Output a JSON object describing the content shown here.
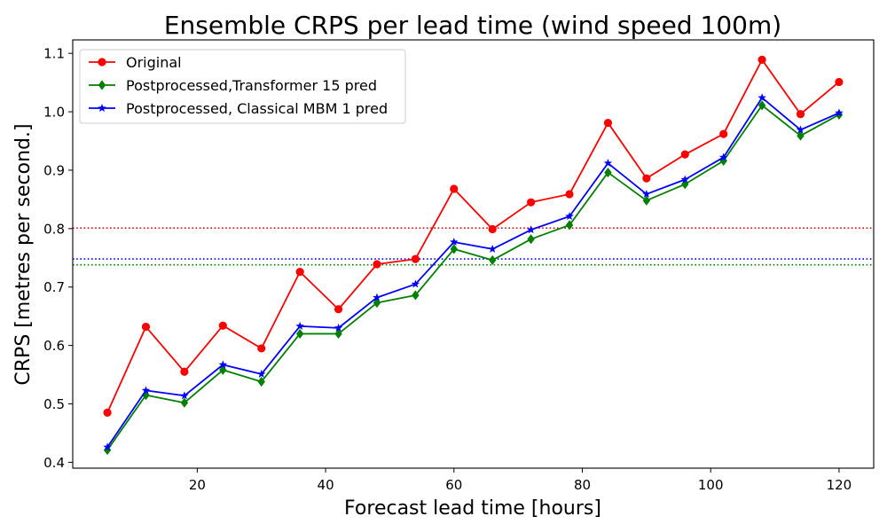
{
  "chart_data": {
    "type": "line",
    "title": "Ensemble CRPS per lead time (wind speed 100m)",
    "xlabel": "Forecast lead time [hours]",
    "ylabel": "CRPS [metres per second.]",
    "xlim": [
      0.6,
      125.4
    ],
    "ylim": [
      0.39,
      1.123
    ],
    "xticks": [
      20,
      40,
      60,
      80,
      100,
      120
    ],
    "yticks": [
      0.4,
      0.5,
      0.6,
      0.7,
      0.8,
      0.9,
      1.0,
      1.1
    ],
    "ytick_labels": [
      "0.4",
      "0.5",
      "0.6",
      "0.7",
      "0.8",
      "0.9",
      "1.0",
      "1.1"
    ],
    "grid": false,
    "legend_position": "upper-left",
    "x": [
      6,
      12,
      18,
      24,
      30,
      36,
      42,
      48,
      54,
      60,
      66,
      72,
      78,
      84,
      90,
      96,
      102,
      108,
      114,
      120
    ],
    "series": [
      {
        "name": "Original",
        "color": "#ff0000",
        "marker": "circle",
        "values": [
          0.485,
          0.632,
          0.555,
          0.634,
          0.595,
          0.726,
          0.662,
          0.739,
          0.748,
          0.868,
          0.799,
          0.845,
          0.859,
          0.981,
          0.886,
          0.927,
          0.962,
          1.089,
          0.996,
          1.051
        ]
      },
      {
        "name": "Postprocessed,Transformer 15 pred",
        "color": "#008000",
        "marker": "diamond",
        "values": [
          0.421,
          0.515,
          0.502,
          0.558,
          0.538,
          0.62,
          0.62,
          0.673,
          0.686,
          0.765,
          0.746,
          0.782,
          0.806,
          0.896,
          0.848,
          0.876,
          0.916,
          1.011,
          0.959,
          0.995
        ]
      },
      {
        "name": "Postprocessed, Classical MBM 1 pred",
        "color": "#0000ff",
        "marker": "star",
        "values": [
          0.426,
          0.523,
          0.514,
          0.567,
          0.551,
          0.633,
          0.63,
          0.682,
          0.705,
          0.777,
          0.765,
          0.798,
          0.821,
          0.912,
          0.859,
          0.884,
          0.922,
          1.024,
          0.969,
          0.998
        ]
      }
    ],
    "reference_lines": [
      {
        "color": "#ff0000",
        "value": 0.801
      },
      {
        "color": "#0000ff",
        "value": 0.748
      },
      {
        "color": "#008000",
        "value": 0.738
      }
    ]
  }
}
